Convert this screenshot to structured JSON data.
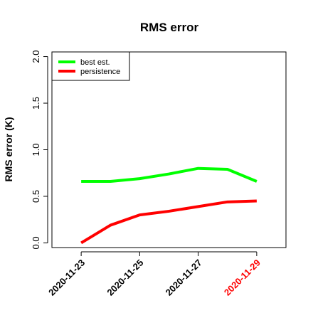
{
  "chart_data": {
    "type": "line",
    "title": "RMS error",
    "xlabel": "",
    "ylabel": "RMS error (K)",
    "x": [
      "2020-11-23",
      "2020-11-24",
      "2020-11-25",
      "2020-11-26",
      "2020-11-27",
      "2020-11-28",
      "2020-11-29"
    ],
    "xlim": [
      "2020-11-22",
      "2020-11-30"
    ],
    "ylim": [
      -0.05,
      2.05
    ],
    "xticks": [
      {
        "label": "2020-11-23",
        "color": "#000000"
      },
      {
        "label": "2020-11-25",
        "color": "#000000"
      },
      {
        "label": "2020-11-27",
        "color": "#000000"
      },
      {
        "label": "2020-11-29",
        "color": "#ff0000"
      }
    ],
    "yticks": [
      "0.0",
      "0.5",
      "1.0",
      "1.5",
      "2.0"
    ],
    "grid": false,
    "legend_position": "top-left",
    "series": [
      {
        "name": "best est.",
        "color": "#00ff00",
        "values": [
          0.66,
          0.66,
          0.69,
          0.74,
          0.8,
          0.79,
          0.66
        ]
      },
      {
        "name": "persistence",
        "color": "#ff0000",
        "values": [
          0.0,
          0.19,
          0.3,
          0.34,
          0.39,
          0.44,
          0.45
        ]
      }
    ]
  }
}
